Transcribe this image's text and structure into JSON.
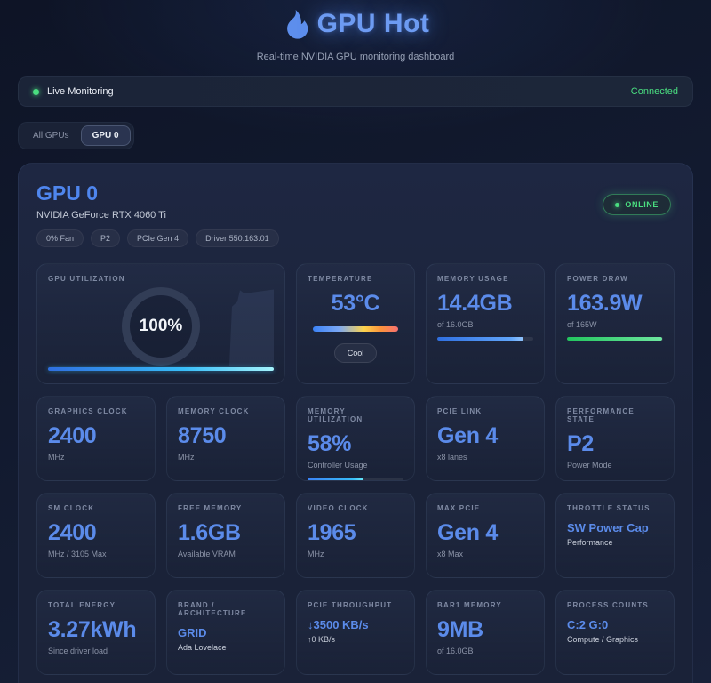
{
  "header": {
    "title": "GPU Hot",
    "subtitle": "Real-time NVIDIA GPU monitoring dashboard"
  },
  "status_bar": {
    "label": "Live Monitoring",
    "connection": "Connected"
  },
  "tabs": {
    "all": "All GPUs",
    "gpu0": "GPU 0"
  },
  "gpu": {
    "title": "GPU 0",
    "name": "NVIDIA GeForce RTX 4060 Ti",
    "badges": [
      "0% Fan",
      "P2",
      "PCIe Gen 4",
      "Driver 550.163.01"
    ],
    "online": "ONLINE"
  },
  "colors": {
    "accent_blue": "#5b8bea",
    "status_green": "#4ade80",
    "bar_cyan": "#38bdf8"
  },
  "cards": [
    {
      "label": "GPU UTILIZATION",
      "value": "100%"
    },
    {
      "label": "TEMPERATURE",
      "value": "53°C",
      "badge": "Cool"
    },
    {
      "label": "MEMORY USAGE",
      "value": "14.4GB",
      "sub": "of 16.0GB",
      "percent": 90
    },
    {
      "label": "POWER DRAW",
      "value": "163.9W",
      "sub": "of 165W",
      "percent": 99
    },
    {
      "label": "GRAPHICS CLOCK",
      "value": "2400",
      "sub": "MHz"
    },
    {
      "label": "MEMORY CLOCK",
      "value": "8750",
      "sub": "MHz"
    },
    {
      "label": "MEMORY UTILIZATION",
      "value": "58%",
      "sub": "Controller Usage",
      "percent": 58
    },
    {
      "label": "PCIE LINK",
      "value": "Gen 4",
      "sub": "x8 lanes"
    },
    {
      "label": "PERFORMANCE STATE",
      "value": "P2",
      "sub": "Power Mode"
    },
    {
      "label": "SM CLOCK",
      "value": "2400",
      "sub": "MHz / 3105 Max"
    },
    {
      "label": "FREE MEMORY",
      "value": "1.6GB",
      "sub": "Available VRAM"
    },
    {
      "label": "VIDEO CLOCK",
      "value": "1965",
      "sub": "MHz"
    },
    {
      "label": "MAX PCIE",
      "value": "Gen 4",
      "sub": "x8 Max"
    },
    {
      "label": "THROTTLE STATUS",
      "value": "SW Power Cap",
      "sub": "Performance"
    },
    {
      "label": "TOTAL ENERGY",
      "value": "3.27kWh",
      "sub": "Since driver load"
    },
    {
      "label": "BRAND / ARCHITECTURE",
      "value": "GRID",
      "sub": "Ada Lovelace"
    },
    {
      "label": "PCIE THROUGHPUT",
      "value": "↓3500 KB/s",
      "sub": "↑0 KB/s"
    },
    {
      "label": "BAR1 MEMORY",
      "value": "9MB",
      "sub": "of 16.0GB"
    },
    {
      "label": "PROCESS COUNTS",
      "value": "C:2 G:0",
      "sub": "Compute / Graphics"
    }
  ]
}
